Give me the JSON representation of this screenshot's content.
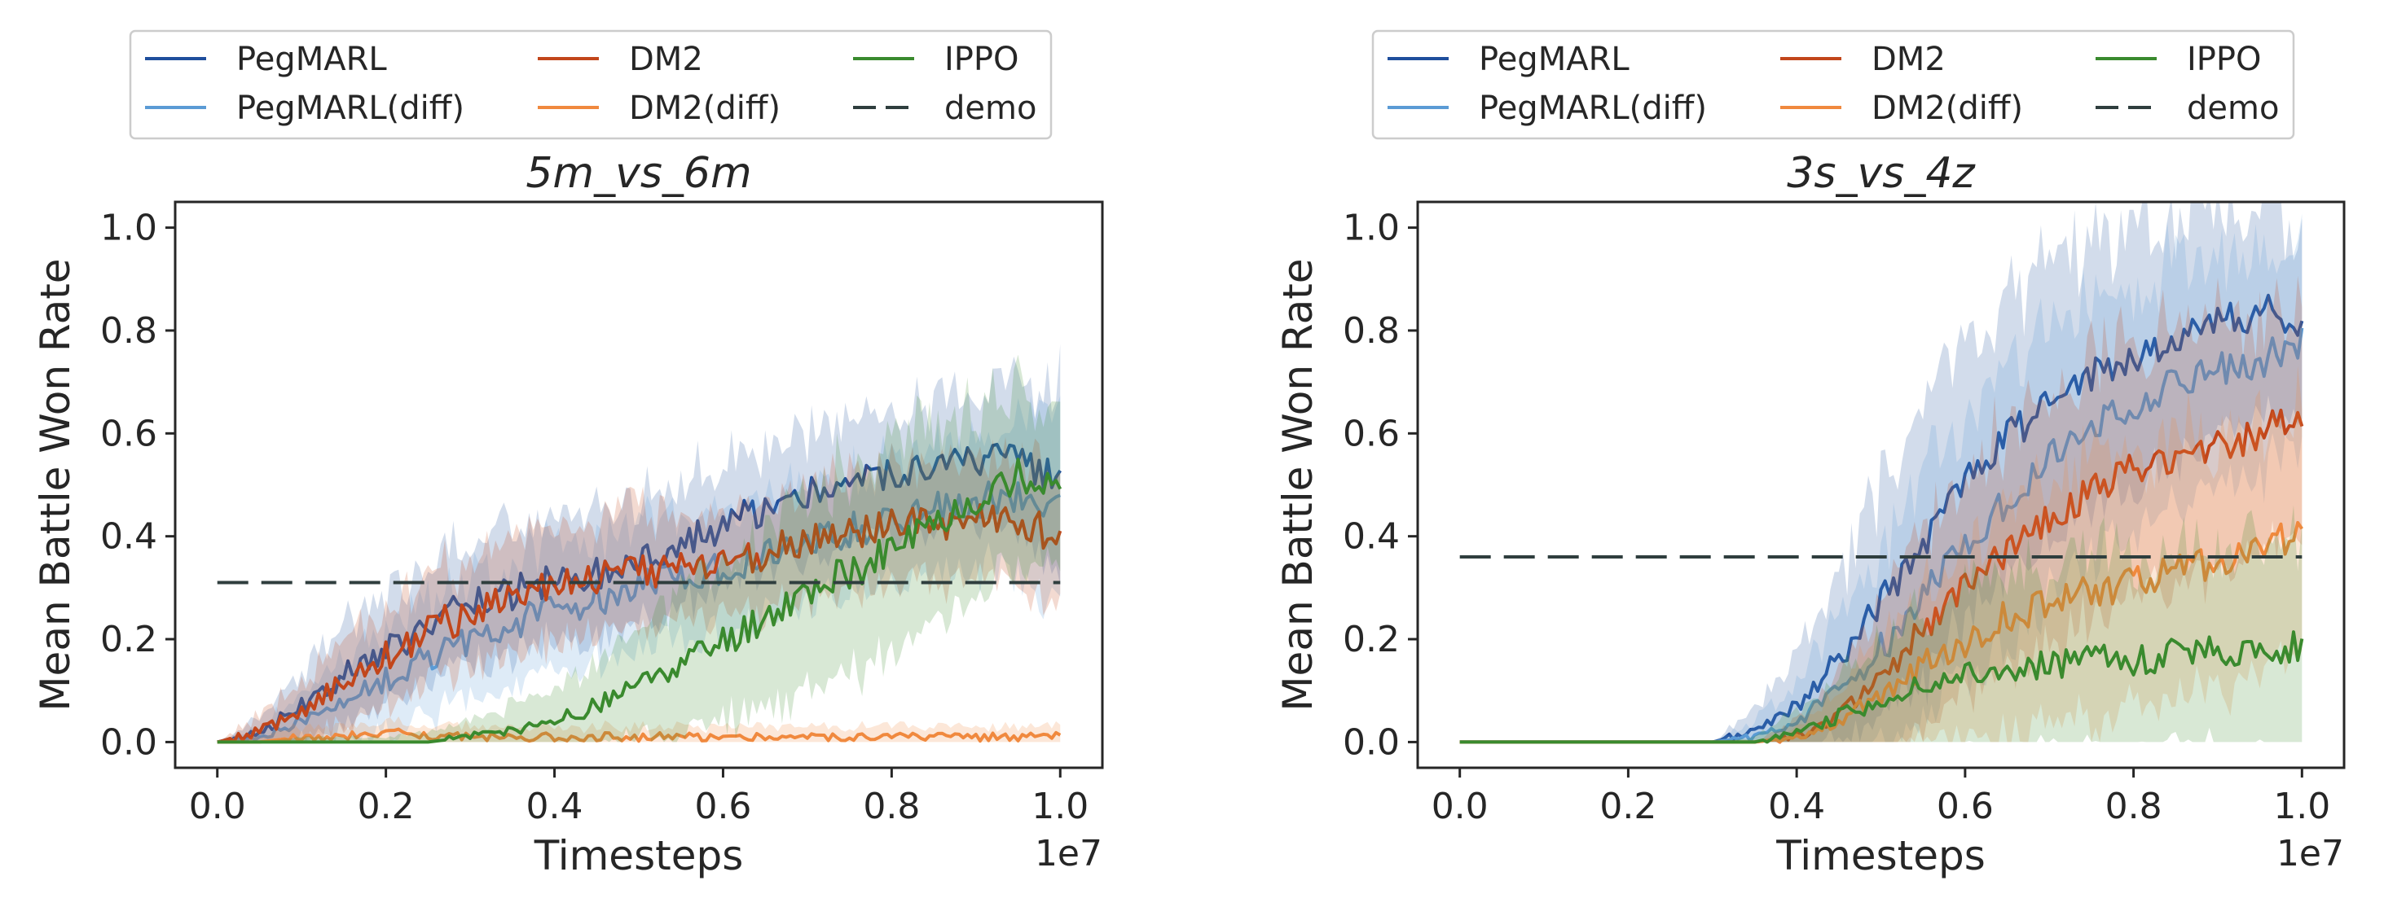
{
  "chart_data": [
    {
      "type": "line",
      "title": "5m_vs_6m",
      "xlabel": "Timesteps",
      "ylabel": "Mean Battle Won Rate",
      "x_offset_label": "1e7",
      "xlim": [
        -0.05,
        1.05
      ],
      "ylim": [
        -0.05,
        1.05
      ],
      "x_ticks": [
        0.0,
        0.2,
        0.4,
        0.6,
        0.8,
        1.0
      ],
      "x_tick_labels": [
        "0.0",
        "0.2",
        "0.4",
        "0.6",
        "0.8",
        "1.0"
      ],
      "y_ticks": [
        0.0,
        0.2,
        0.4,
        0.6,
        0.8,
        1.0
      ],
      "y_tick_labels": [
        "0.0",
        "0.2",
        "0.4",
        "0.6",
        "0.8",
        "1.0"
      ],
      "grid": false,
      "legend": {
        "placement": "above plot, 3 columns",
        "entries": [
          {
            "name": "PegMARL",
            "color": "#1f4e9c",
            "style": "solid"
          },
          {
            "name": "PegMARL(diff)",
            "color": "#5b9bd5",
            "style": "solid"
          },
          {
            "name": "DM2",
            "color": "#c2461b",
            "style": "solid"
          },
          {
            "name": "DM2(diff)",
            "color": "#f0893e",
            "style": "solid"
          },
          {
            "name": "IPPO",
            "color": "#3a8a2e",
            "style": "solid"
          },
          {
            "name": "demo",
            "color": "#2f3e3e",
            "style": "dashed"
          }
        ]
      },
      "series": [
        {
          "name": "PegMARL",
          "color": "#1f4e9c",
          "x": [
            0.0,
            0.05,
            0.1,
            0.15,
            0.2,
            0.25,
            0.3,
            0.35,
            0.4,
            0.45,
            0.5,
            0.55,
            0.6,
            0.65,
            0.7,
            0.75,
            0.8,
            0.85,
            0.9,
            0.95,
            1.0
          ],
          "y": [
            0.0,
            0.02,
            0.07,
            0.13,
            0.18,
            0.23,
            0.26,
            0.29,
            0.31,
            0.33,
            0.36,
            0.39,
            0.42,
            0.45,
            0.48,
            0.5,
            0.52,
            0.53,
            0.54,
            0.55,
            0.5
          ],
          "band": [
            0.0,
            0.03,
            0.07,
            0.09,
            0.1,
            0.11,
            0.12,
            0.12,
            0.12,
            0.12,
            0.12,
            0.12,
            0.12,
            0.12,
            0.12,
            0.12,
            0.12,
            0.12,
            0.13,
            0.15,
            0.2
          ]
        },
        {
          "name": "PegMARL(diff)",
          "color": "#5b9bd5",
          "x": [
            0.0,
            0.05,
            0.1,
            0.15,
            0.2,
            0.25,
            0.3,
            0.35,
            0.4,
            0.45,
            0.5,
            0.55,
            0.6,
            0.65,
            0.7,
            0.75,
            0.8,
            0.85,
            0.9,
            0.95,
            1.0
          ],
          "y": [
            0.0,
            0.01,
            0.04,
            0.08,
            0.12,
            0.17,
            0.2,
            0.23,
            0.26,
            0.28,
            0.3,
            0.32,
            0.34,
            0.36,
            0.39,
            0.41,
            0.43,
            0.45,
            0.47,
            0.48,
            0.47
          ],
          "band": [
            0.0,
            0.02,
            0.05,
            0.08,
            0.1,
            0.11,
            0.12,
            0.12,
            0.12,
            0.12,
            0.12,
            0.12,
            0.12,
            0.12,
            0.12,
            0.12,
            0.12,
            0.13,
            0.13,
            0.15,
            0.2
          ]
        },
        {
          "name": "DM2",
          "color": "#c2461b",
          "x": [
            0.0,
            0.05,
            0.1,
            0.15,
            0.2,
            0.25,
            0.3,
            0.35,
            0.4,
            0.45,
            0.5,
            0.55,
            0.6,
            0.65,
            0.7,
            0.75,
            0.8,
            0.85,
            0.9,
            0.95,
            1.0
          ],
          "y": [
            0.0,
            0.02,
            0.06,
            0.12,
            0.17,
            0.22,
            0.25,
            0.29,
            0.31,
            0.32,
            0.33,
            0.34,
            0.35,
            0.37,
            0.39,
            0.41,
            0.42,
            0.42,
            0.43,
            0.43,
            0.4
          ],
          "band": [
            0.0,
            0.03,
            0.06,
            0.08,
            0.09,
            0.1,
            0.1,
            0.11,
            0.11,
            0.11,
            0.11,
            0.11,
            0.11,
            0.11,
            0.11,
            0.11,
            0.11,
            0.11,
            0.11,
            0.12,
            0.13
          ]
        },
        {
          "name": "DM2(diff)",
          "color": "#f0893e",
          "x": [
            0.0,
            0.05,
            0.1,
            0.15,
            0.2,
            0.25,
            0.3,
            0.35,
            0.4,
            0.45,
            0.5,
            0.55,
            0.6,
            0.65,
            0.7,
            0.75,
            0.8,
            0.85,
            0.9,
            0.95,
            1.0
          ],
          "y": [
            0.0,
            0.0,
            0.01,
            0.01,
            0.02,
            0.01,
            0.01,
            0.01,
            0.01,
            0.01,
            0.01,
            0.01,
            0.01,
            0.01,
            0.01,
            0.01,
            0.01,
            0.01,
            0.01,
            0.01,
            0.01
          ],
          "band": [
            0.0,
            0.01,
            0.02,
            0.02,
            0.02,
            0.02,
            0.02,
            0.02,
            0.02,
            0.02,
            0.02,
            0.02,
            0.02,
            0.02,
            0.02,
            0.02,
            0.02,
            0.02,
            0.02,
            0.02,
            0.02
          ]
        },
        {
          "name": "IPPO",
          "color": "#3a8a2e",
          "x": [
            0.0,
            0.05,
            0.1,
            0.15,
            0.2,
            0.25,
            0.3,
            0.35,
            0.4,
            0.45,
            0.5,
            0.55,
            0.6,
            0.65,
            0.7,
            0.75,
            0.8,
            0.85,
            0.9,
            0.95,
            1.0
          ],
          "y": [
            0.0,
            0.0,
            0.0,
            0.0,
            0.0,
            0.0,
            0.01,
            0.02,
            0.04,
            0.07,
            0.11,
            0.15,
            0.19,
            0.24,
            0.29,
            0.33,
            0.37,
            0.42,
            0.47,
            0.52,
            0.5
          ],
          "band": [
            0.0,
            0.0,
            0.01,
            0.01,
            0.01,
            0.02,
            0.03,
            0.05,
            0.07,
            0.09,
            0.11,
            0.13,
            0.15,
            0.17,
            0.19,
            0.2,
            0.2,
            0.19,
            0.18,
            0.17,
            0.15
          ]
        },
        {
          "name": "demo",
          "color": "#2f3e3e",
          "dashed": true,
          "x": [
            0.0,
            1.0
          ],
          "y": [
            0.31,
            0.31
          ]
        }
      ]
    },
    {
      "type": "line",
      "title": "3s_vs_4z",
      "xlabel": "Timesteps",
      "ylabel": "Mean Battle Won Rate",
      "x_offset_label": "1e7",
      "xlim": [
        -0.05,
        1.05
      ],
      "ylim": [
        -0.05,
        1.05
      ],
      "x_ticks": [
        0.0,
        0.2,
        0.4,
        0.6,
        0.8,
        1.0
      ],
      "x_tick_labels": [
        "0.0",
        "0.2",
        "0.4",
        "0.6",
        "0.8",
        "1.0"
      ],
      "y_ticks": [
        0.0,
        0.2,
        0.4,
        0.6,
        0.8,
        1.0
      ],
      "y_tick_labels": [
        "0.0",
        "0.2",
        "0.4",
        "0.6",
        "0.8",
        "1.0"
      ],
      "grid": false,
      "legend": {
        "placement": "above plot, 3 columns",
        "entries": [
          {
            "name": "PegMARL",
            "color": "#1f4e9c",
            "style": "solid"
          },
          {
            "name": "PegMARL(diff)",
            "color": "#5b9bd5",
            "style": "solid"
          },
          {
            "name": "DM2",
            "color": "#c2461b",
            "style": "solid"
          },
          {
            "name": "DM2(diff)",
            "color": "#f0893e",
            "style": "solid"
          },
          {
            "name": "IPPO",
            "color": "#3a8a2e",
            "style": "solid"
          },
          {
            "name": "demo",
            "color": "#2f3e3e",
            "style": "dashed"
          }
        ]
      },
      "series": [
        {
          "name": "PegMARL",
          "color": "#1f4e9c",
          "x": [
            0.0,
            0.05,
            0.1,
            0.15,
            0.2,
            0.25,
            0.3,
            0.35,
            0.4,
            0.45,
            0.5,
            0.55,
            0.6,
            0.65,
            0.7,
            0.75,
            0.8,
            0.85,
            0.9,
            0.95,
            1.0
          ],
          "y": [
            0.0,
            0.0,
            0.0,
            0.0,
            0.0,
            0.0,
            0.0,
            0.02,
            0.07,
            0.16,
            0.27,
            0.38,
            0.5,
            0.59,
            0.66,
            0.71,
            0.75,
            0.78,
            0.81,
            0.84,
            0.82
          ],
          "band": [
            0.0,
            0.0,
            0.0,
            0.0,
            0.0,
            0.0,
            0.0,
            0.04,
            0.1,
            0.16,
            0.22,
            0.26,
            0.28,
            0.28,
            0.27,
            0.26,
            0.25,
            0.24,
            0.22,
            0.2,
            0.18
          ]
        },
        {
          "name": "PegMARL(diff)",
          "color": "#5b9bd5",
          "x": [
            0.0,
            0.05,
            0.1,
            0.15,
            0.2,
            0.25,
            0.3,
            0.35,
            0.4,
            0.45,
            0.5,
            0.55,
            0.6,
            0.65,
            0.7,
            0.75,
            0.8,
            0.85,
            0.9,
            0.95,
            1.0
          ],
          "y": [
            0.0,
            0.0,
            0.0,
            0.0,
            0.0,
            0.0,
            0.0,
            0.01,
            0.04,
            0.1,
            0.18,
            0.28,
            0.38,
            0.47,
            0.55,
            0.61,
            0.66,
            0.7,
            0.72,
            0.74,
            0.78
          ],
          "band": [
            0.0,
            0.0,
            0.0,
            0.0,
            0.0,
            0.0,
            0.0,
            0.03,
            0.08,
            0.13,
            0.19,
            0.23,
            0.26,
            0.27,
            0.27,
            0.26,
            0.25,
            0.24,
            0.23,
            0.22,
            0.2
          ]
        },
        {
          "name": "DM2",
          "color": "#c2461b",
          "x": [
            0.0,
            0.05,
            0.1,
            0.15,
            0.2,
            0.25,
            0.3,
            0.35,
            0.4,
            0.45,
            0.5,
            0.55,
            0.6,
            0.65,
            0.7,
            0.75,
            0.8,
            0.85,
            0.9,
            0.95,
            1.0
          ],
          "y": [
            0.0,
            0.0,
            0.0,
            0.0,
            0.0,
            0.0,
            0.0,
            0.0,
            0.01,
            0.05,
            0.12,
            0.22,
            0.3,
            0.38,
            0.44,
            0.49,
            0.53,
            0.56,
            0.58,
            0.6,
            0.64
          ],
          "band": [
            0.0,
            0.0,
            0.0,
            0.0,
            0.0,
            0.0,
            0.0,
            0.0,
            0.03,
            0.08,
            0.14,
            0.19,
            0.22,
            0.24,
            0.25,
            0.25,
            0.25,
            0.25,
            0.24,
            0.24,
            0.23
          ]
        },
        {
          "name": "DM2(diff)",
          "color": "#f0893e",
          "x": [
            0.0,
            0.05,
            0.1,
            0.15,
            0.2,
            0.25,
            0.3,
            0.35,
            0.4,
            0.45,
            0.5,
            0.55,
            0.6,
            0.65,
            0.7,
            0.75,
            0.8,
            0.85,
            0.9,
            0.95,
            1.0
          ],
          "y": [
            0.0,
            0.0,
            0.0,
            0.0,
            0.0,
            0.0,
            0.0,
            0.0,
            0.01,
            0.04,
            0.09,
            0.15,
            0.2,
            0.24,
            0.27,
            0.29,
            0.31,
            0.33,
            0.35,
            0.37,
            0.42
          ],
          "band": [
            0.0,
            0.0,
            0.0,
            0.0,
            0.0,
            0.0,
            0.0,
            0.0,
            0.02,
            0.06,
            0.11,
            0.15,
            0.19,
            0.21,
            0.23,
            0.24,
            0.25,
            0.25,
            0.25,
            0.25,
            0.24
          ]
        },
        {
          "name": "IPPO",
          "color": "#3a8a2e",
          "x": [
            0.0,
            0.05,
            0.1,
            0.15,
            0.2,
            0.25,
            0.3,
            0.35,
            0.4,
            0.45,
            0.5,
            0.55,
            0.6,
            0.65,
            0.7,
            0.75,
            0.8,
            0.85,
            0.9,
            0.95,
            1.0
          ],
          "y": [
            0.0,
            0.0,
            0.0,
            0.0,
            0.0,
            0.0,
            0.0,
            0.0,
            0.02,
            0.05,
            0.08,
            0.11,
            0.13,
            0.14,
            0.15,
            0.16,
            0.16,
            0.17,
            0.18,
            0.18,
            0.19
          ],
          "band": [
            0.0,
            0.0,
            0.0,
            0.0,
            0.0,
            0.0,
            0.0,
            0.01,
            0.04,
            0.08,
            0.12,
            0.15,
            0.17,
            0.18,
            0.19,
            0.2,
            0.2,
            0.2,
            0.2,
            0.2,
            0.2
          ]
        },
        {
          "name": "demo",
          "color": "#2f3e3e",
          "dashed": true,
          "x": [
            0.0,
            1.0
          ],
          "y": [
            0.36,
            0.36
          ]
        }
      ]
    }
  ]
}
